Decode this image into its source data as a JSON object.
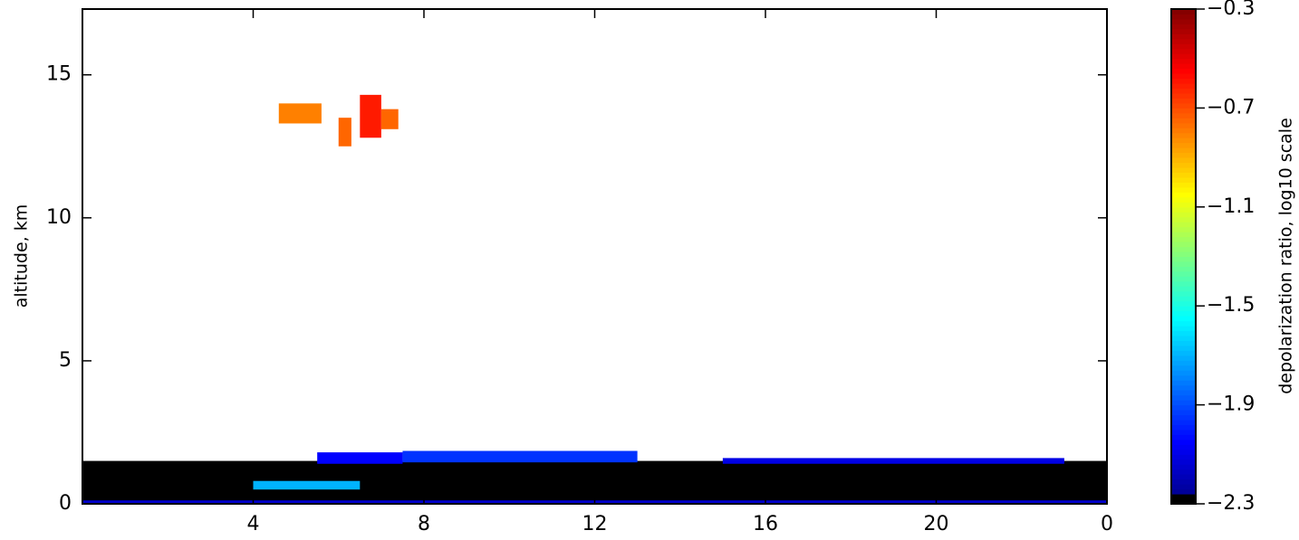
{
  "chart_data": {
    "type": "heatmap",
    "ylabel": "altitude, km",
    "colorbar_label": "depolarization ratio, log10 scale",
    "xlim": [
      0,
      24
    ],
    "ylim": [
      0,
      17.3
    ],
    "xticks": [
      4,
      8,
      12,
      16,
      20,
      {
        "value": 24,
        "label": "0"
      }
    ],
    "yticks": [
      0,
      5,
      10,
      15
    ],
    "clim": [
      -2.3,
      -0.3
    ],
    "cticks": [
      {
        "value": -2.3,
        "label": "−2.3"
      },
      {
        "value": -1.9,
        "label": "−1.9"
      },
      {
        "value": -1.5,
        "label": "−1.5"
      },
      {
        "value": -1.1,
        "label": "−1.1"
      },
      {
        "value": -0.7,
        "label": "−0.7"
      },
      {
        "value": -0.3,
        "label": "−0.3"
      }
    ],
    "cells": [
      {
        "x": [
          0,
          24
        ],
        "y": [
          0.1,
          1.5
        ],
        "value": -2.3
      },
      {
        "x": [
          0,
          24
        ],
        "y": [
          0,
          0.12
        ],
        "value": -2.15
      },
      {
        "x": [
          5.5,
          7.5
        ],
        "y": [
          1.4,
          1.8
        ],
        "value": -2.05
      },
      {
        "x": [
          7.5,
          13
        ],
        "y": [
          1.45,
          1.85
        ],
        "value": -1.95
      },
      {
        "x": [
          15,
          23
        ],
        "y": [
          1.4,
          1.6
        ],
        "value": -2.1
      },
      {
        "x": [
          4,
          6.5
        ],
        "y": [
          0.5,
          0.8
        ],
        "value": -1.7
      },
      {
        "x": [
          4.6,
          5.6
        ],
        "y": [
          13.3,
          14
        ],
        "value": -0.8
      },
      {
        "x": [
          6,
          6.3
        ],
        "y": [
          12.5,
          13.5
        ],
        "value": -0.75
      },
      {
        "x": [
          6.5,
          7
        ],
        "y": [
          12.8,
          14.3
        ],
        "value": -0.6
      },
      {
        "x": [
          7,
          7.4
        ],
        "y": [
          13.1,
          13.8
        ],
        "value": -0.75
      }
    ]
  }
}
